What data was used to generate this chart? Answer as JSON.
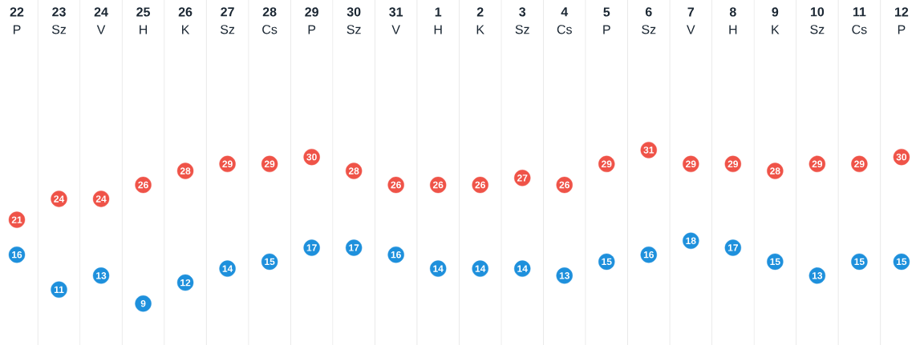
{
  "chart_data": {
    "type": "scatter",
    "categories": [
      "**22** P",
      "**23** Sz",
      "**24** V",
      "**25** H",
      "**26** K",
      "**27** Sz",
      "**28** Cs",
      "**29** P",
      "**30** Sz",
      "**31** V",
      "**1** H",
      "**2** K",
      "**3** Sz",
      "**4** Cs",
      "**5** P",
      "**6** Sz",
      "**7** V",
      "**8** H",
      "**9** K",
      "**10** Sz",
      "**11** Cs",
      "**12** P"
    ],
    "series": [
      {
        "color": "#ef5348",
        "values": [
          21,
          24,
          24,
          26,
          28,
          29,
          29,
          30,
          28,
          26,
          26,
          26,
          27,
          26,
          29,
          31,
          29,
          29,
          28,
          29,
          29,
          30
        ]
      },
      {
        "color": "#1e90dc",
        "values": [
          16,
          11,
          13,
          9,
          12,
          14,
          15,
          17,
          17,
          16,
          14,
          14,
          14,
          13,
          15,
          16,
          18,
          17,
          15,
          13,
          15,
          15
        ]
      }
    ],
    "marker": "circle",
    "data_labels": true,
    "grid": "x",
    "tick_labels": "x"
  }
}
